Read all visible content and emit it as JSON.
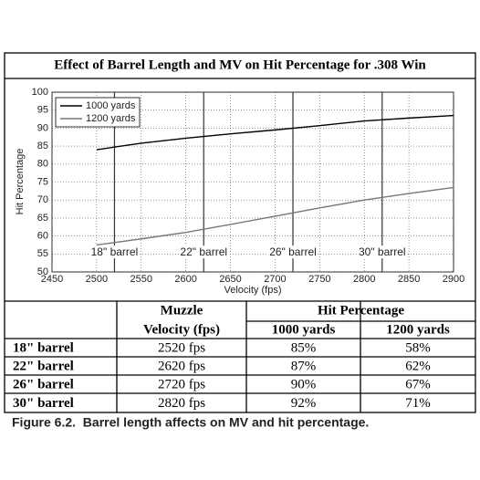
{
  "chart_data": {
    "type": "line",
    "title": "Effect of Barrel Length and MV on Hit Percentage for .308 Win",
    "x_label": "Velocity (fps)",
    "y_label": "Hit Percentage",
    "x": [
      2500,
      2550,
      2600,
      2650,
      2700,
      2750,
      2800,
      2850,
      2900
    ],
    "series": [
      {
        "name": "1000 yards",
        "color": "#000000",
        "values": [
          84,
          85.8,
          87.2,
          88.4,
          89.5,
          90.7,
          92,
          92.8,
          93.5
        ]
      },
      {
        "name": "1200 yards",
        "color": "#777777",
        "values": [
          57.5,
          59.2,
          61,
          63.2,
          65.5,
          67.8,
          70,
          71.8,
          73.5
        ]
      }
    ],
    "xlim": [
      2450,
      2900
    ],
    "ylim": [
      50,
      100
    ],
    "xticks": [
      2450,
      2500,
      2550,
      2600,
      2650,
      2700,
      2750,
      2800,
      2850,
      2900
    ],
    "yticks": [
      50,
      55,
      60,
      65,
      70,
      75,
      80,
      85,
      90,
      95,
      100
    ],
    "grid": true,
    "legend": "upper left",
    "annotations": [
      {
        "x": 2520,
        "label": "18\" barrel"
      },
      {
        "x": 2620,
        "label": "22\" barrel"
      },
      {
        "x": 2720,
        "label": "26\" barrel"
      },
      {
        "x": 2820,
        "label": "30\" barrel"
      }
    ]
  },
  "table": {
    "header": {
      "muzzle": [
        "Muzzle",
        "Velocity (fps)"
      ],
      "hit": "Hit Percentage",
      "sub": [
        "1000 yards",
        "1200 yards"
      ]
    },
    "rows": [
      [
        "18\" barrel",
        "2520 fps",
        "85%",
        "58%"
      ],
      [
        "22\" barrel",
        "2620 fps",
        "87%",
        "62%"
      ],
      [
        "26\" barrel",
        "2720 fps",
        "90%",
        "67%"
      ],
      [
        "30\" barrel",
        "2820 fps",
        "92%",
        "71%"
      ]
    ]
  },
  "caption": "Figure 6.2.  Barrel length affects on MV and hit percentage."
}
